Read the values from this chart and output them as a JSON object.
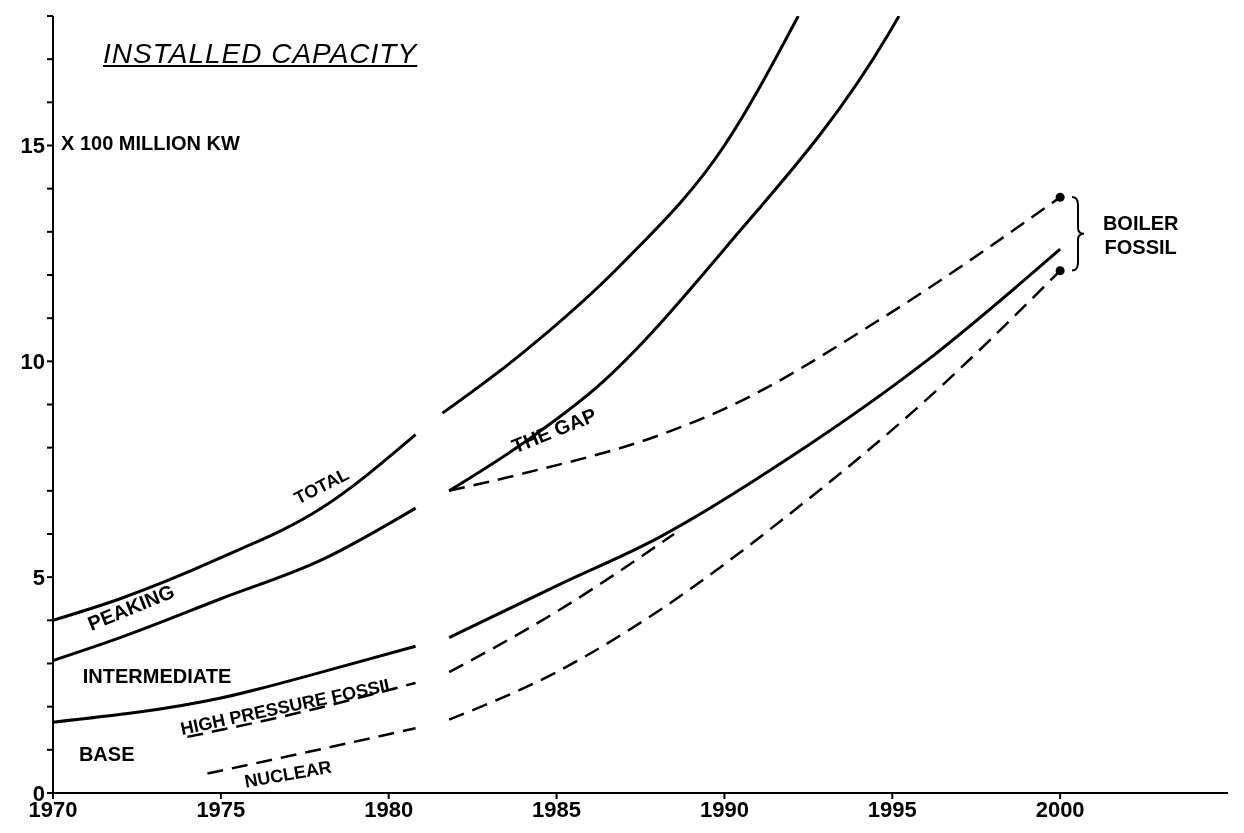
{
  "chart_data": {
    "type": "line",
    "title": "INSTALLED CAPACITY",
    "ylabel": "X 100 MILLION KW",
    "xlim": [
      1970,
      2005
    ],
    "xticks": [
      1970,
      1975,
      1980,
      1985,
      1990,
      1995,
      2000
    ],
    "ylim": [
      0,
      18
    ],
    "yticks": [
      0,
      {
        "value": 1,
        "label": null
      },
      {
        "value": 2,
        "label": null
      },
      {
        "value": 3,
        "label": null
      },
      {
        "value": 4,
        "label": null
      },
      5,
      {
        "value": 6,
        "label": null
      },
      {
        "value": 7,
        "label": null
      },
      {
        "value": 8,
        "label": null
      },
      {
        "value": 9,
        "label": null
      },
      10,
      {
        "value": 11,
        "label": null
      },
      {
        "value": 12,
        "label": null
      },
      {
        "value": 13,
        "label": null
      },
      {
        "value": 14,
        "label": null
      },
      15,
      {
        "value": 16,
        "label": null
      },
      {
        "value": 17,
        "label": null
      },
      {
        "value": 18,
        "label": null
      }
    ],
    "grid": false,
    "legend": false,
    "marker": "none",
    "series": [
      {
        "name": "TOTAL",
        "color": "#000000",
        "line_style": "solid",
        "x": [
          1970,
          1972,
          1975,
          1978,
          1980.8,
          1981.3,
          1981.6,
          1984,
          1987,
          1990,
          1992.2
        ],
        "values": [
          4.0,
          4.5,
          5.45,
          6.6,
          8.3,
          null,
          8.8,
          10.2,
          12.3,
          15.0,
          18.0
        ]
      },
      {
        "color": "#000000",
        "line_style": "solid",
        "x": [
          1970,
          1972,
          1975,
          1978,
          1980.8,
          1981.3,
          1981.8,
          1984,
          1986.2,
          1990,
          1994.9,
          1995.2
        ],
        "values": [
          3.07,
          3.6,
          4.5,
          5.4,
          6.6,
          null,
          7.0,
          8.1,
          9.4,
          12.6,
          17.6,
          18.0
        ]
      },
      {
        "color": "#000000",
        "line_style": "dashed",
        "x": [
          1981.8,
          1984,
          1988.1,
          1990,
          1994.9,
          2000
        ],
        "values": [
          7.0,
          7.4,
          8.3,
          8.9,
          11.1,
          13.8
        ]
      },
      {
        "color": "#000000",
        "line_style": "solid",
        "x": [
          1970,
          1975,
          1978,
          1980.8,
          1981.3,
          1981.8,
          1985,
          1988,
          1992,
          1996,
          2000
        ],
        "values": [
          1.64,
          2.2,
          2.8,
          3.4,
          null,
          3.6,
          4.8,
          5.9,
          7.8,
          10.0,
          12.6
        ]
      },
      {
        "name": "HIGH PRESSURE FOSSIL",
        "color": "#000000",
        "line_style": "dashed",
        "x": [
          1974,
          1977,
          1980.8,
          1981.3,
          1981.8,
          1985,
          1988.5
        ],
        "values": [
          1.3,
          1.8,
          2.55,
          null,
          2.8,
          4.2,
          6.0
        ]
      },
      {
        "name": "NUCLEAR",
        "color": "#000000",
        "line_style": "dashed",
        "x": [
          1974.6,
          1977,
          1980.8,
          1981.3,
          1981.8,
          1985,
          1988,
          1992,
          1996,
          2000
        ],
        "values": [
          0.45,
          0.85,
          1.5,
          null,
          1.7,
          2.8,
          4.2,
          6.5,
          9.1,
          12.1
        ]
      },
      {
        "type": "scatter",
        "marker": "circle",
        "color": "#000000",
        "x": [
          2000,
          2000
        ],
        "values": [
          13.8,
          12.1
        ]
      }
    ],
    "annotations": [
      "PEAKING",
      "INTERMEDIATE",
      "BASE",
      "THE GAP",
      "BOILER FOSSIL"
    ]
  }
}
